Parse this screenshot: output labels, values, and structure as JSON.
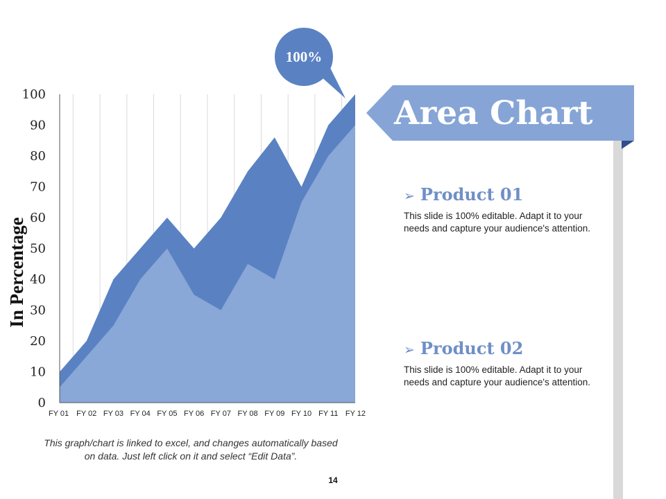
{
  "slide": {
    "title": "Area Chart",
    "page_number": "14",
    "note": "This graph/chart is linked to excel, and changes automatically based on data. Just left click on it and select “Edit Data”.",
    "products": [
      {
        "title": "Product 01",
        "description": "This slide is 100% editable. Adapt it to your needs and capture your audience's attention."
      },
      {
        "title": "Product 02",
        "description": "This slide is 100% editable. Adapt it to your needs and capture your audience's attention."
      }
    ],
    "colors": {
      "accent": "#6f8fc6",
      "banner": "#86a5d6",
      "dark_blue": "#5a82c2",
      "light_blue": "#89a7d7"
    }
  },
  "chart_data": {
    "type": "area",
    "categories": [
      "FY 01",
      "FY 02",
      "FY 03",
      "FY 04",
      "FY 05",
      "FY 06",
      "FY 07",
      "FY 08",
      "FY 09",
      "FY 10",
      "FY 11",
      "FY 12"
    ],
    "series": [
      {
        "values": [
          10,
          20,
          40,
          50,
          60,
          50,
          60,
          75,
          86,
          70,
          90,
          100
        ],
        "color": "#5a82c2"
      },
      {
        "values": [
          5,
          15,
          25,
          40,
          50,
          35,
          30,
          45,
          40,
          65,
          80,
          90
        ],
        "color": "#89a7d7"
      }
    ],
    "ylabel": "In Percentage",
    "xlabel": "",
    "ylim": [
      0,
      100
    ],
    "yticks": [
      0,
      10,
      20,
      30,
      40,
      50,
      60,
      70,
      80,
      90,
      100
    ],
    "grid": "vertical",
    "callout": "100%"
  }
}
